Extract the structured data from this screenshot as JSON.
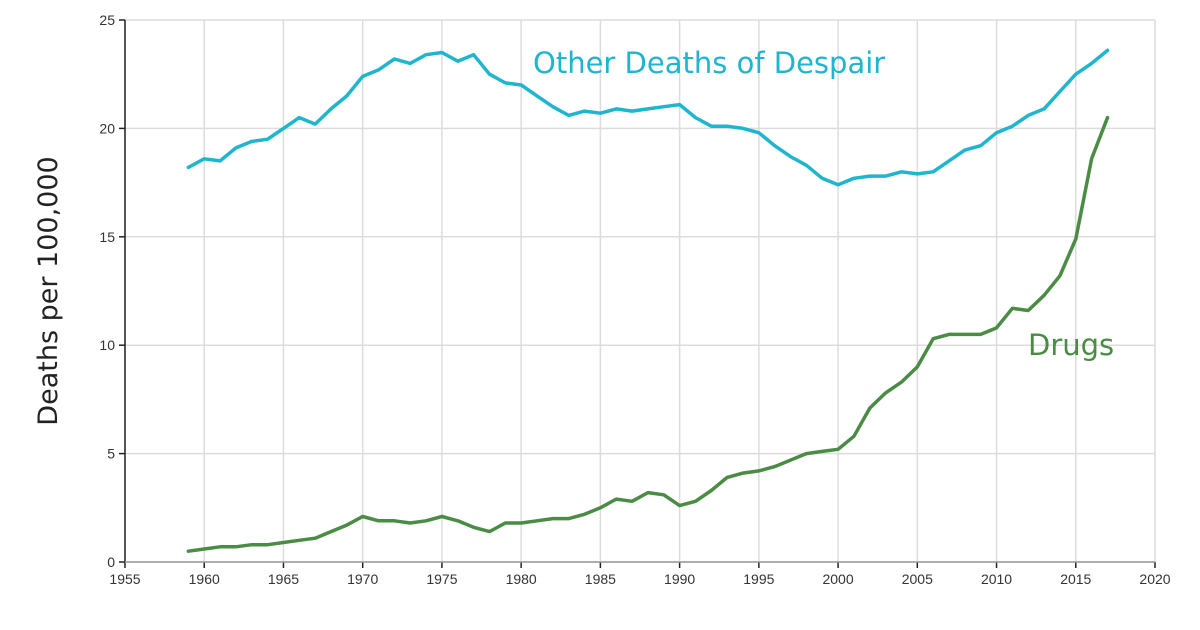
{
  "chart_data": {
    "type": "line",
    "title": "",
    "xlabel": "",
    "ylabel": "Deaths per 100,000",
    "xlim": [
      1955,
      2020
    ],
    "ylim": [
      0,
      25
    ],
    "xticks": [
      1955,
      1960,
      1965,
      1970,
      1975,
      1980,
      1985,
      1990,
      1995,
      2000,
      2005,
      2010,
      2015,
      2020
    ],
    "yticks": [
      0,
      5,
      10,
      15,
      20,
      25
    ],
    "grid": true,
    "legend": "inline labels",
    "x": [
      1959,
      1960,
      1961,
      1962,
      1963,
      1964,
      1965,
      1966,
      1967,
      1968,
      1969,
      1970,
      1971,
      1972,
      1973,
      1974,
      1975,
      1976,
      1977,
      1978,
      1979,
      1980,
      1981,
      1982,
      1983,
      1984,
      1985,
      1986,
      1987,
      1988,
      1989,
      1990,
      1991,
      1992,
      1993,
      1994,
      1995,
      1996,
      1997,
      1998,
      1999,
      2000,
      2001,
      2002,
      2003,
      2004,
      2005,
      2006,
      2007,
      2008,
      2009,
      2010,
      2011,
      2012,
      2013,
      2014,
      2015,
      2016,
      2017
    ],
    "series": [
      {
        "name": "Other Deaths of Despair",
        "color": "#1fb5cf",
        "values": [
          18.2,
          18.6,
          18.5,
          19.1,
          19.4,
          19.5,
          20.0,
          20.5,
          20.2,
          20.9,
          21.5,
          22.4,
          22.7,
          23.2,
          23.0,
          23.4,
          23.5,
          23.1,
          23.4,
          22.5,
          22.1,
          22.0,
          21.5,
          21.0,
          20.6,
          20.8,
          20.7,
          20.9,
          20.8,
          20.9,
          21.0,
          21.1,
          20.5,
          20.1,
          20.1,
          20.0,
          19.8,
          19.2,
          18.7,
          18.3,
          17.7,
          17.4,
          17.7,
          17.8,
          17.8,
          18.0,
          17.9,
          18.0,
          18.5,
          19.0,
          19.2,
          19.8,
          20.1,
          20.6,
          20.9,
          21.7,
          22.5,
          23.0,
          23.6
        ]
      },
      {
        "name": "Drugs",
        "color": "#4a8c44",
        "values": [
          0.5,
          0.6,
          0.7,
          0.7,
          0.8,
          0.8,
          0.9,
          1.0,
          1.1,
          1.4,
          1.7,
          2.1,
          1.9,
          1.9,
          1.8,
          1.9,
          2.1,
          1.9,
          1.6,
          1.4,
          1.8,
          1.8,
          1.9,
          2.0,
          2.0,
          2.2,
          2.5,
          2.9,
          2.8,
          3.2,
          3.1,
          2.6,
          2.8,
          3.3,
          3.9,
          4.1,
          4.2,
          4.4,
          4.7,
          5.0,
          5.1,
          5.2,
          5.8,
          7.1,
          7.8,
          8.3,
          9.0,
          10.3,
          10.5,
          10.5,
          10.5,
          10.8,
          11.7,
          11.6,
          12.3,
          13.2,
          14.9,
          18.6,
          20.5
        ]
      }
    ]
  }
}
